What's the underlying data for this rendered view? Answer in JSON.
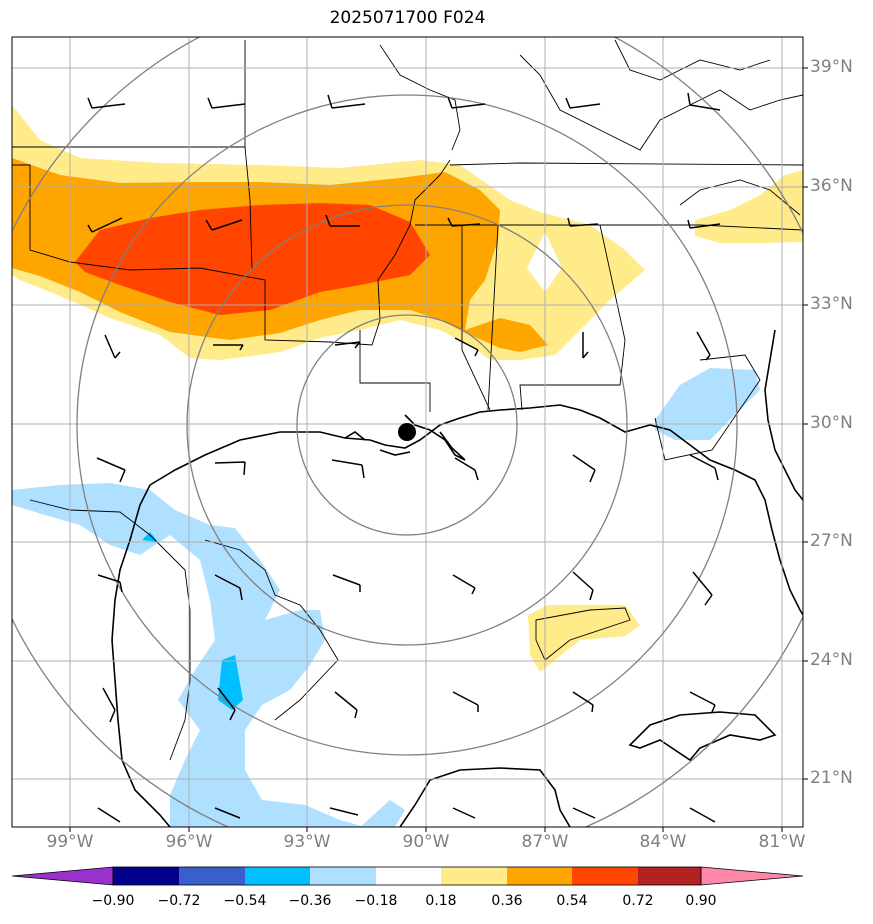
{
  "title": "2025071700 F024",
  "lat_labels": [
    "39°N",
    "36°N",
    "33°N",
    "30°N",
    "27°N",
    "24°N",
    "21°N"
  ],
  "lon_labels": [
    "99°W",
    "96°W",
    "93°W",
    "90°W",
    "87°W",
    "84°W",
    "81°W"
  ],
  "colorbar": {
    "ticks": [
      "−0.90",
      "−0.72",
      "−0.54",
      "−0.36",
      "−0.18",
      "0.18",
      "0.36",
      "0.54",
      "0.72",
      "0.90"
    ],
    "colors": [
      "#9932cc",
      "#00008b",
      "#3a5fcd",
      "#00bfff",
      "#b0e0ff",
      "#ffffff",
      "#ffeb8a",
      "#ffa500",
      "#ff4500",
      "#b22222",
      "#ff88aa"
    ]
  },
  "colors": {
    "light_yellow": "#ffeb8a",
    "orange": "#ffa500",
    "red_orange": "#ff4500",
    "light_blue": "#b0e0ff",
    "sky_blue": "#00bfff",
    "range_ring": "#808080",
    "grid": "#b0b0b0"
  }
}
